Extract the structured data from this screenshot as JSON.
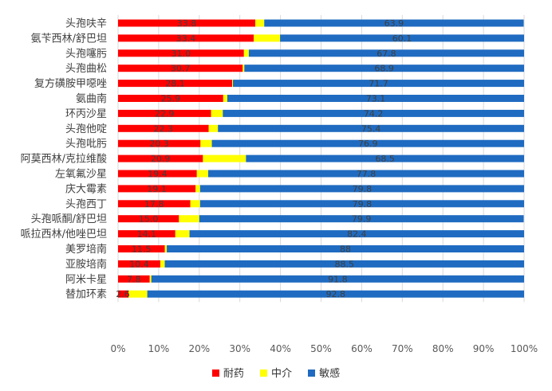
{
  "chart_data": {
    "type": "bar",
    "orientation": "horizontal",
    "stacked": "percent",
    "categories": [
      "头孢呋辛",
      "氨苄西林/舒巴坦",
      "头孢噻肟",
      "头孢曲松",
      "复方磺胺甲噁唑",
      "氨曲南",
      "环丙沙星",
      "头孢他啶",
      "头孢吡肟",
      "阿莫西林/克拉维酸",
      "左氧氟沙星",
      "庆大霉素",
      "头孢西丁",
      "头孢哌酮/舒巴坦",
      "哌拉西林/他唑巴坦",
      "美罗培南",
      "亚胺培南",
      "阿米卡星",
      "替加环素"
    ],
    "series": [
      {
        "name": "耐药",
        "color": "#ff0000",
        "values": [
          33.8,
          33.4,
          31.0,
          30.7,
          28.1,
          25.9,
          22.9,
          22.3,
          20.3,
          20.9,
          19.4,
          19.1,
          17.8,
          15.0,
          14.1,
          11.5,
          10.4,
          7.8,
          2.6
        ]
      },
      {
        "name": "中介",
        "color": "#ffff00",
        "values": [
          2.2,
          6.5,
          1.2,
          0.4,
          0.2,
          1.0,
          2.9,
          2.3,
          2.8,
          10.6,
          2.8,
          1.1,
          2.4,
          5.0,
          3.5,
          0.5,
          1.1,
          0.4,
          4.6
        ]
      },
      {
        "name": "敏感",
        "color": "#1f6bc1",
        "values": [
          63.9,
          60.1,
          67.8,
          68.9,
          71.7,
          73.1,
          74.2,
          75.4,
          76.9,
          68.5,
          77.8,
          79.8,
          79.8,
          79.9,
          82.4,
          88.0,
          88.5,
          91.8,
          92.8
        ]
      }
    ],
    "xlim": [
      0,
      100
    ],
    "xticks": [
      "0%",
      "10%",
      "20%",
      "30%",
      "40%",
      "50%",
      "60%",
      "70%",
      "80%",
      "90%",
      "100%"
    ],
    "value_labels": [
      [
        "33.8",
        "63.9"
      ],
      [
        "33.4",
        "60.1"
      ],
      [
        "31.0",
        "67.8"
      ],
      [
        "30.7",
        "68.9"
      ],
      [
        "28.1",
        "71.7"
      ],
      [
        "25.9",
        "73.1"
      ],
      [
        "22.9",
        "74.2"
      ],
      [
        "22.3",
        "75.4"
      ],
      [
        "20.3",
        "76.9"
      ],
      [
        "20.9",
        "68.5"
      ],
      [
        "19.4",
        "77.8"
      ],
      [
        "19.1",
        "79.8"
      ],
      [
        "17.8",
        "79.8"
      ],
      [
        "15.0",
        "79.9"
      ],
      [
        "14.1",
        "82.4"
      ],
      [
        "11.5",
        "88"
      ],
      [
        "10.4",
        "88.5"
      ],
      [
        "7.8",
        "91.8"
      ],
      [
        "2.6",
        "92.8"
      ]
    ],
    "grid": true,
    "legend_position": "bottom"
  }
}
